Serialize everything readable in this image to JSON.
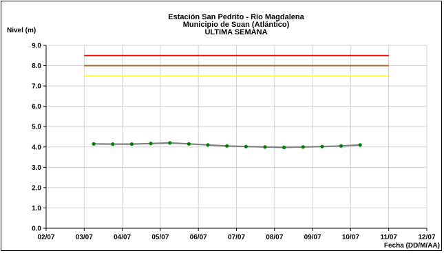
{
  "chart_data": {
    "type": "line",
    "title_lines": [
      "Estación San Pedrito - Río Magdalena",
      "Municipio de Suan (Atlántico)",
      "ULTIMA SEMANA"
    ],
    "ylabel": "Nivel (m)",
    "xlabel": "Fecha (DD/M/AA)",
    "ylim": [
      0,
      9
    ],
    "yticks": [
      "0.0",
      "1.0",
      "2.0",
      "3.0",
      "4.0",
      "5.0",
      "6.0",
      "7.0",
      "8.0",
      "9.0"
    ],
    "xlim": [
      0,
      10
    ],
    "xticks": [
      "02/07",
      "03/07",
      "04/07",
      "05/07",
      "06/07",
      "07/07",
      "08/07",
      "09/07",
      "10/07",
      "11/07",
      "12/07"
    ],
    "grid": true,
    "legend": "none",
    "series": [
      {
        "color": "#7f7f7f",
        "marker_color": "#008000",
        "x": [
          1.25,
          1.75,
          2.25,
          2.75,
          3.25,
          3.75,
          4.25,
          4.75,
          5.25,
          5.75,
          6.25,
          6.75,
          7.25,
          7.75,
          8.25
        ],
        "values": [
          4.15,
          4.14,
          4.14,
          4.17,
          4.2,
          4.15,
          4.1,
          4.05,
          4.02,
          4.0,
          3.98,
          4.0,
          4.02,
          4.05,
          4.1
        ]
      }
    ],
    "reference_lines": [
      {
        "value": 8.5,
        "color": "#e81010"
      },
      {
        "value": 8.0,
        "color": "#a06a30"
      },
      {
        "value": 7.5,
        "color": "#ffff40"
      }
    ],
    "reference_x_range": [
      1.0,
      9.0
    ]
  }
}
